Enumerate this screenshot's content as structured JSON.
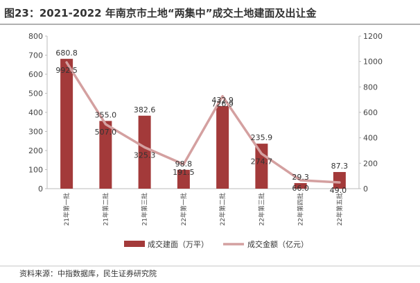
{
  "title": "图23：2021-2022 年南京市土地“两集中”成交土地建面及出让金",
  "source": "资料来源：中指数据库，民生证券研究院",
  "colors": {
    "bar": "#a33a3a",
    "line": "#d4a0a0",
    "axis": "#bbbbbb",
    "text": "#333333"
  },
  "chart_data": {
    "type": "bar+line",
    "categories": [
      "21年第一批",
      "21年第二批",
      "21年第三批",
      "22年第一批",
      "22年第二批",
      "22年第三批",
      "22年第四批",
      "22年第五批"
    ],
    "series": [
      {
        "name": "成交建面（万平）",
        "type": "bar",
        "axis": "left",
        "values": [
          680.8,
          355.0,
          382.6,
          98.8,
          432.9,
          235.9,
          29.3,
          87.3
        ]
      },
      {
        "name": "成交金额（亿元）",
        "type": "line",
        "axis": "right",
        "values": [
          992.5,
          507.0,
          325.3,
          191.5,
          726.9,
          274.7,
          66.0,
          49.0
        ]
      }
    ],
    "y_left": {
      "min": 0,
      "max": 800,
      "ticks": [
        "0",
        "100",
        "200",
        "300",
        "400",
        "500",
        "600",
        "700",
        "800"
      ]
    },
    "y_right": {
      "min": 0,
      "max": 1200,
      "ticks": [
        "0",
        "200",
        "400",
        "600",
        "800",
        "1000",
        "1200"
      ]
    },
    "bar_labels": [
      "680.8",
      "355.0",
      "382.6",
      "98.8",
      "432.9",
      "235.9",
      "29.3",
      "87.3"
    ],
    "line_labels": [
      "992.5",
      "507.0",
      "325.3",
      "191.5",
      "726.9",
      "274.7",
      "66.0",
      "49.0"
    ],
    "legend": {
      "position": "bottom",
      "items": [
        "成交建面（万平）",
        "成交金额（亿元）"
      ]
    }
  }
}
